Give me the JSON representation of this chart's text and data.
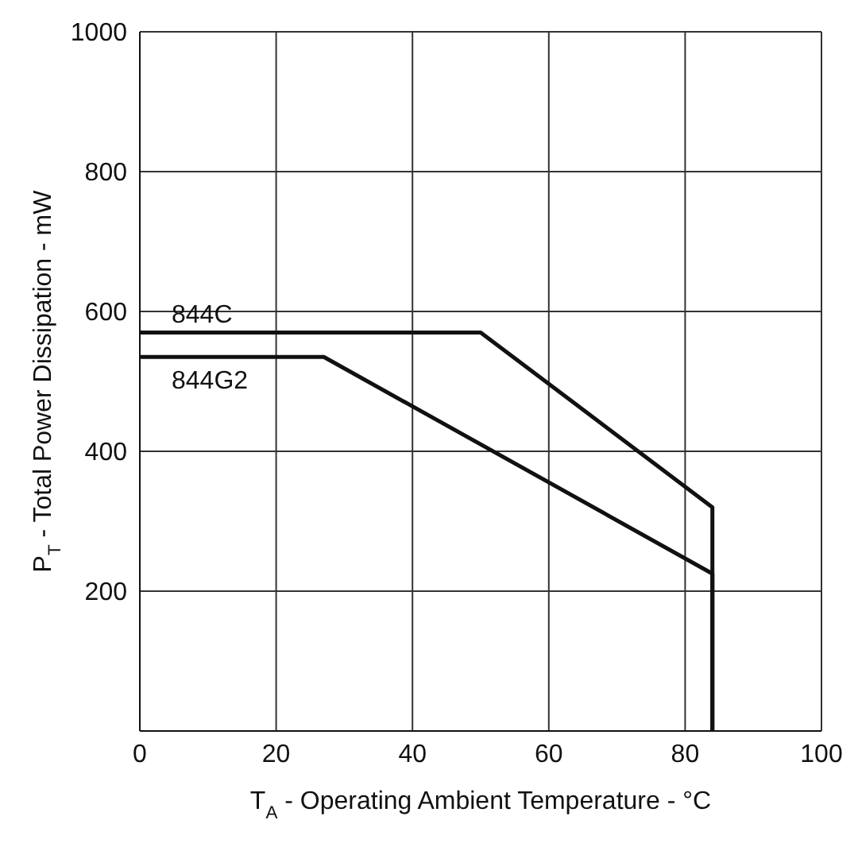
{
  "chart_data": {
    "type": "line",
    "xlabel": "T$_{A}$ - Operating Ambient Temperature - °C",
    "ylabel": "P$_{T}$ - Total Power Dissipation - mW",
    "series": [
      {
        "name": "844C",
        "color": "#111111",
        "x": [
          0,
          50,
          84,
          84
        ],
        "values": [
          570,
          570,
          320,
          0
        ]
      },
      {
        "name": "844G2",
        "color": "#111111",
        "x": [
          0,
          27,
          84,
          84
        ],
        "values": [
          535,
          535,
          225,
          0
        ]
      }
    ],
    "xlim": [
      0,
      100
    ],
    "xticks": [
      0,
      20,
      40,
      60,
      80,
      100
    ],
    "ylim": [
      0,
      1000
    ],
    "yticks": [
      200,
      400,
      600,
      800,
      1000
    ],
    "grid": true,
    "legend": false,
    "marker": "none",
    "line_style": "solid"
  }
}
